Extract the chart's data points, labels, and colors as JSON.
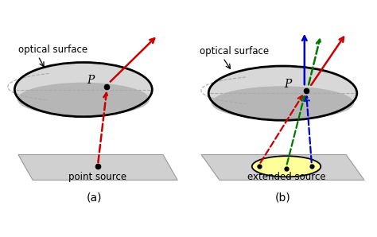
{
  "background_color": "#ffffff",
  "fig_width": 4.74,
  "fig_height": 2.98,
  "dpi": 100,
  "label_a": "(a)",
  "label_b": "(b)",
  "text_optical_surface_a": "optical surface",
  "text_point_source": "point source",
  "text_optical_surface_b": "optical surface",
  "text_extended_source": "extended source",
  "text_P_a": "P",
  "text_P_b": "P",
  "ellipse_color": "#000000",
  "ellipse_face_light": "#d8d8d8",
  "ellipse_face_dark": "#b0b0b0",
  "plane_color_a": "#d0d0d0",
  "plane_color_b": "#d0d0d0",
  "yellow_ellipse_color": "#ffff99",
  "arrow_red": "#cc0000",
  "arrow_blue": "#0000cc",
  "arrow_green": "#007700"
}
